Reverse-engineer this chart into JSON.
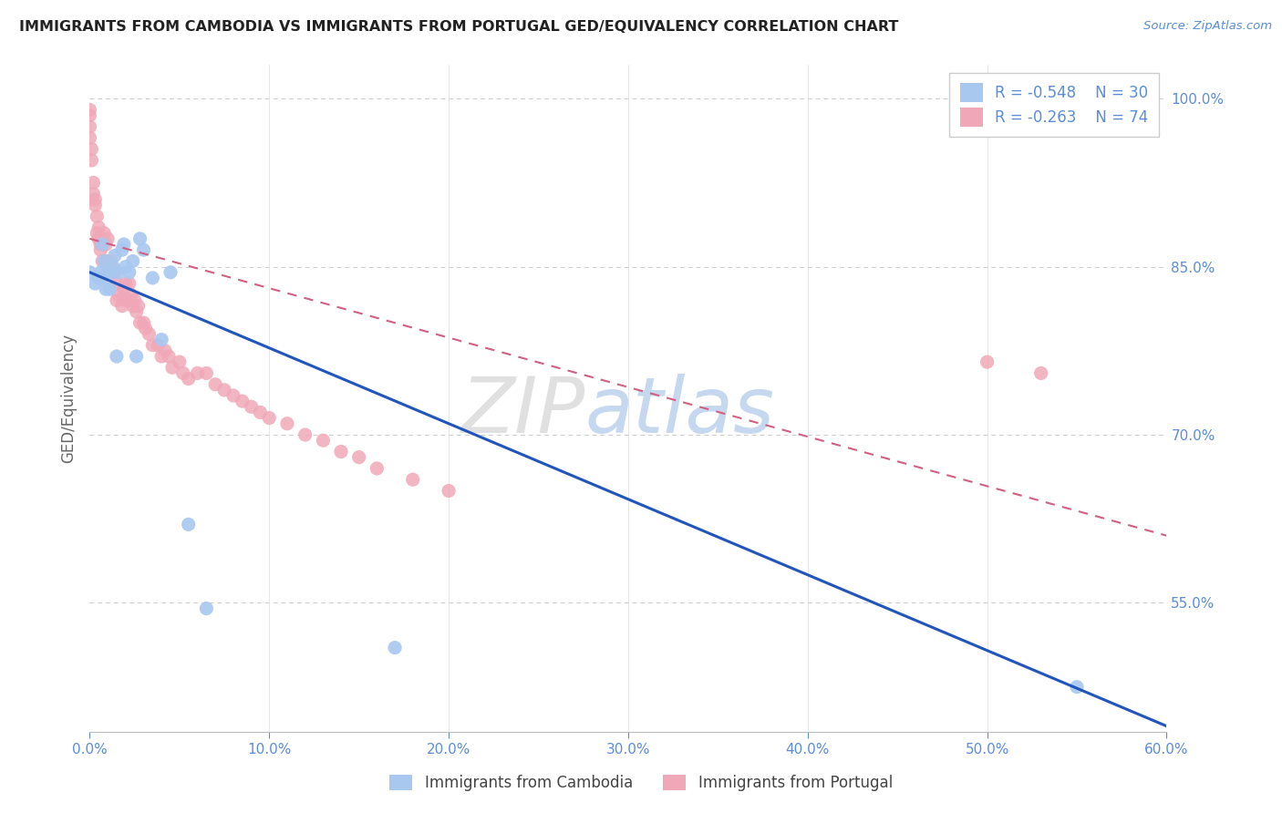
{
  "title": "IMMIGRANTS FROM CAMBODIA VS IMMIGRANTS FROM PORTUGAL GED/EQUIVALENCY CORRELATION CHART",
  "source": "Source: ZipAtlas.com",
  "ylabel": "GED/Equivalency",
  "right_yticks": [
    1.0,
    0.85,
    0.7,
    0.55
  ],
  "right_ytick_labels": [
    "100.0%",
    "85.0%",
    "70.0%",
    "55.0%"
  ],
  "xlim": [
    0.0,
    0.6
  ],
  "ylim": [
    0.435,
    1.03
  ],
  "legend_r1": "R = -0.548",
  "legend_n1": "N = 30",
  "legend_r2": "R = -0.263",
  "legend_n2": "N = 74",
  "color_cambodia": "#a8c8f0",
  "color_portugal": "#f0a8b8",
  "color_text_blue": "#5b8dd9",
  "color_title": "#222222",
  "watermark_zip": "ZIP",
  "watermark_atlas": "atlas",
  "cam_line_x0": 0.0,
  "cam_line_y0": 0.845,
  "cam_line_x1": 0.6,
  "cam_line_y1": 0.44,
  "port_line_x0": 0.0,
  "port_line_y0": 0.875,
  "port_line_x1": 0.6,
  "port_line_y1": 0.61,
  "cambodia_scatter_x": [
    0.0,
    0.003,
    0.005,
    0.006,
    0.007,
    0.007,
    0.008,
    0.009,
    0.01,
    0.011,
    0.012,
    0.013,
    0.014,
    0.015,
    0.016,
    0.018,
    0.019,
    0.02,
    0.022,
    0.024,
    0.026,
    0.028,
    0.03,
    0.035,
    0.04,
    0.045,
    0.055,
    0.065,
    0.17,
    0.55
  ],
  "cambodia_scatter_y": [
    0.845,
    0.835,
    0.84,
    0.845,
    0.84,
    0.87,
    0.855,
    0.83,
    0.845,
    0.83,
    0.845,
    0.85,
    0.86,
    0.77,
    0.845,
    0.865,
    0.87,
    0.85,
    0.845,
    0.855,
    0.77,
    0.875,
    0.865,
    0.84,
    0.785,
    0.845,
    0.62,
    0.545,
    0.51,
    0.475
  ],
  "portugal_scatter_x": [
    0.0,
    0.0,
    0.0,
    0.0,
    0.001,
    0.001,
    0.002,
    0.002,
    0.003,
    0.003,
    0.004,
    0.004,
    0.005,
    0.005,
    0.005,
    0.006,
    0.006,
    0.007,
    0.007,
    0.008,
    0.009,
    0.009,
    0.01,
    0.01,
    0.011,
    0.012,
    0.013,
    0.014,
    0.015,
    0.015,
    0.016,
    0.018,
    0.019,
    0.02,
    0.02,
    0.022,
    0.022,
    0.023,
    0.024,
    0.025,
    0.026,
    0.027,
    0.028,
    0.03,
    0.031,
    0.033,
    0.035,
    0.038,
    0.04,
    0.042,
    0.044,
    0.046,
    0.05,
    0.052,
    0.055,
    0.06,
    0.065,
    0.07,
    0.075,
    0.08,
    0.085,
    0.09,
    0.095,
    0.1,
    0.11,
    0.12,
    0.13,
    0.14,
    0.15,
    0.16,
    0.18,
    0.2,
    0.5,
    0.53
  ],
  "portugal_scatter_y": [
    0.99,
    0.985,
    0.975,
    0.965,
    0.955,
    0.945,
    0.925,
    0.915,
    0.905,
    0.91,
    0.895,
    0.88,
    0.875,
    0.885,
    0.875,
    0.87,
    0.865,
    0.855,
    0.87,
    0.88,
    0.87,
    0.855,
    0.875,
    0.855,
    0.845,
    0.855,
    0.845,
    0.845,
    0.82,
    0.835,
    0.825,
    0.815,
    0.83,
    0.82,
    0.835,
    0.835,
    0.82,
    0.825,
    0.815,
    0.82,
    0.81,
    0.815,
    0.8,
    0.8,
    0.795,
    0.79,
    0.78,
    0.78,
    0.77,
    0.775,
    0.77,
    0.76,
    0.765,
    0.755,
    0.75,
    0.755,
    0.755,
    0.745,
    0.74,
    0.735,
    0.73,
    0.725,
    0.72,
    0.715,
    0.71,
    0.7,
    0.695,
    0.685,
    0.68,
    0.67,
    0.66,
    0.65,
    0.765,
    0.755
  ]
}
